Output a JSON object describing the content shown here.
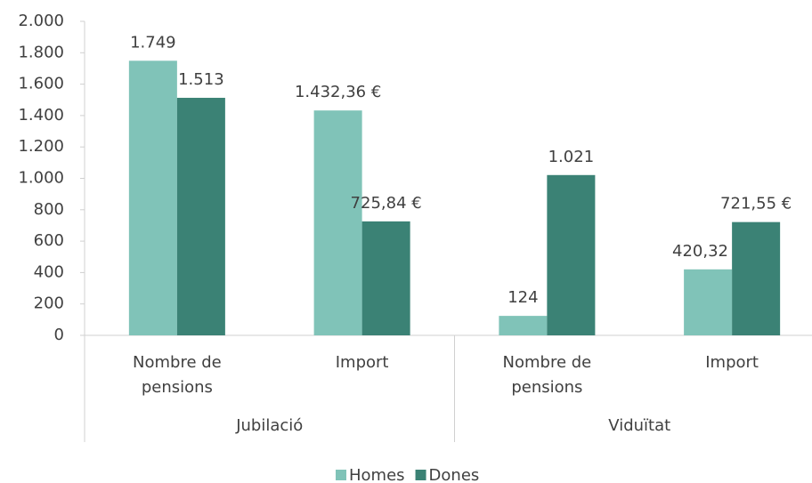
{
  "chart_data": {
    "type": "bar",
    "categories": [
      "Nombre de pensions",
      "Import",
      "Nombre de pensions",
      "Import"
    ],
    "groups": [
      "Jubilació",
      "Viduïtat"
    ],
    "series": [
      {
        "name": "Homes",
        "color": "#80c3b8",
        "values": [
          1749,
          1432.36,
          124,
          420.32
        ],
        "value_labels": [
          "1.749",
          "1.432,36 €",
          "124",
          "420,32 €"
        ]
      },
      {
        "name": "Dones",
        "color": "#3b8275",
        "values": [
          1513,
          725.84,
          1021,
          721.55
        ],
        "value_labels": [
          "1.513",
          "725,84 €",
          "1.021",
          "721,55 €"
        ]
      }
    ],
    "ylim": [
      0,
      2000
    ],
    "yticks": [
      0,
      200,
      400,
      600,
      800,
      {
        "value": 1000,
        "label": "1.000"
      },
      {
        "value": 1200,
        "label": "1.200"
      },
      {
        "value": 1400,
        "label": "1.400"
      },
      {
        "value": 1600,
        "label": "1.600"
      },
      {
        "value": 1800,
        "label": "1.800"
      },
      {
        "value": 2000,
        "label": "2.000"
      }
    ],
    "legend": "bottom"
  }
}
